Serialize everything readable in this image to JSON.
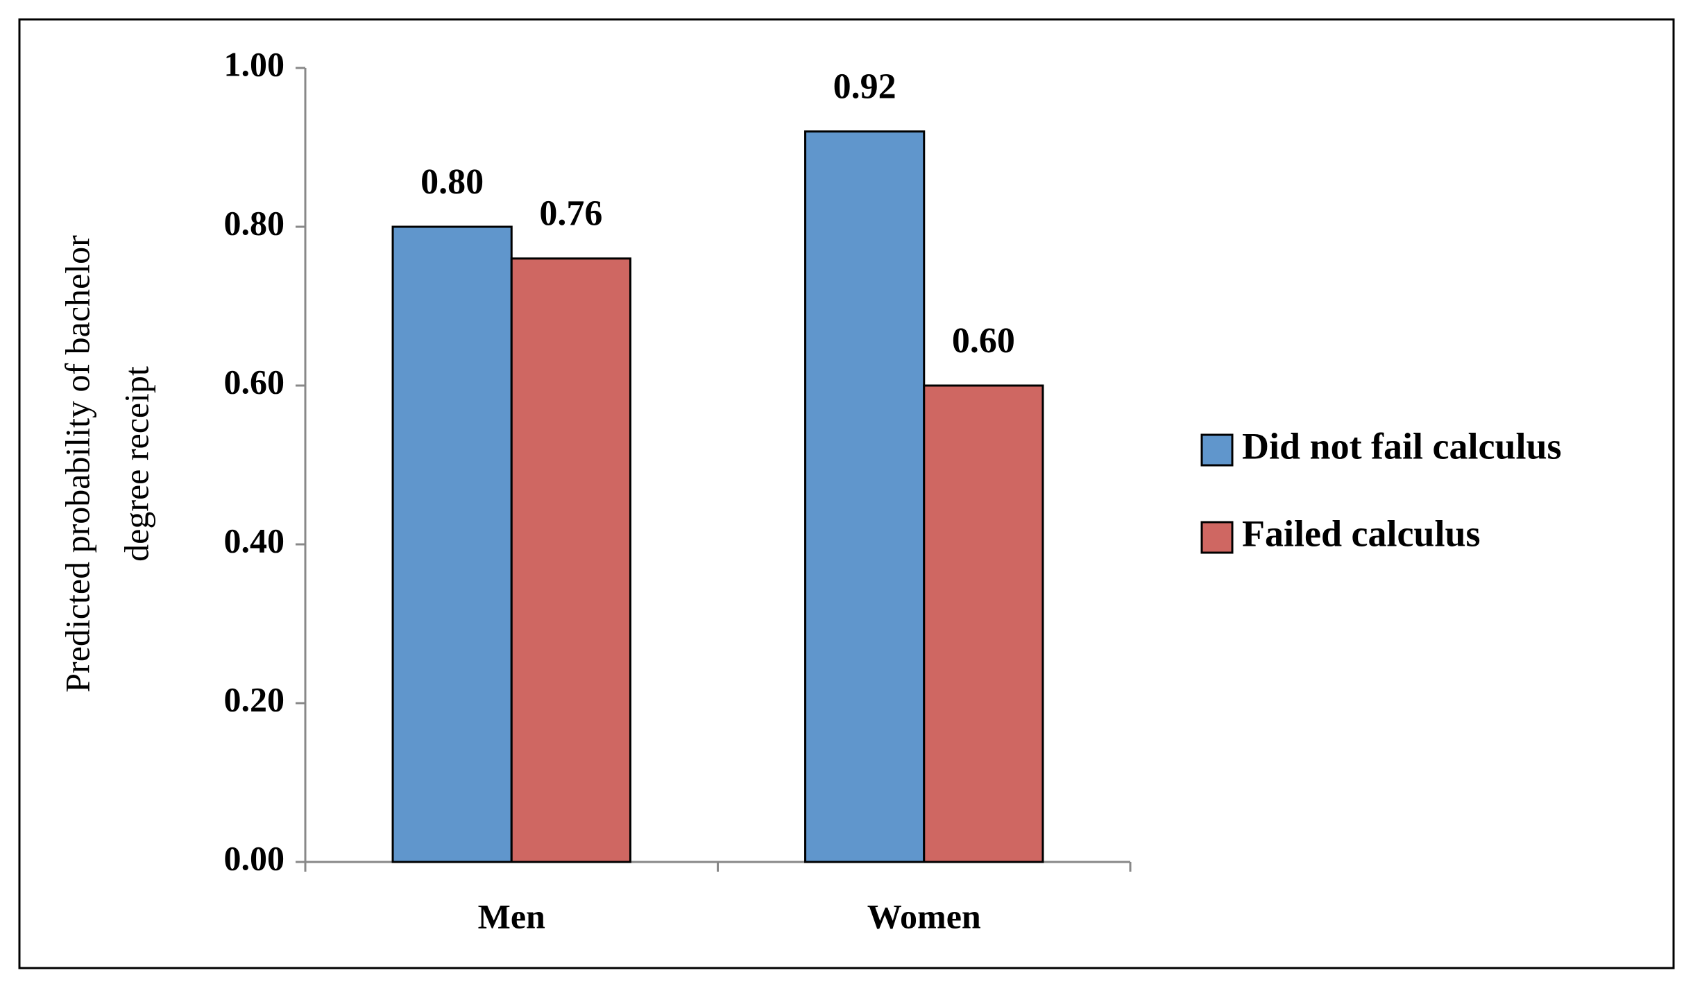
{
  "chart_data": {
    "type": "bar",
    "ylabel": [
      "Predicted probability of bachelor",
      "degree receipt"
    ],
    "categories": [
      "Men",
      "Women"
    ],
    "series": [
      {
        "name": "Did not fail calculus",
        "color": "#6096cc",
        "values": [
          0.8,
          0.92
        ],
        "value_labels": [
          "0.80",
          "0.92"
        ]
      },
      {
        "name": "Failed calculus",
        "color": "#cf6762",
        "values": [
          0.76,
          0.6
        ],
        "value_labels": [
          "0.76",
          "0.60"
        ]
      }
    ],
    "ylim": [
      0,
      1
    ],
    "yticks": [
      {
        "value": 0,
        "label": "0.00"
      },
      {
        "value": 0.2,
        "label": "0.20"
      },
      {
        "value": 0.4,
        "label": "0.40"
      },
      {
        "value": 0.6,
        "label": "0.60"
      },
      {
        "value": 0.8,
        "label": "0.80"
      },
      {
        "value": 1,
        "label": "1.00"
      }
    ],
    "legend": "right"
  }
}
